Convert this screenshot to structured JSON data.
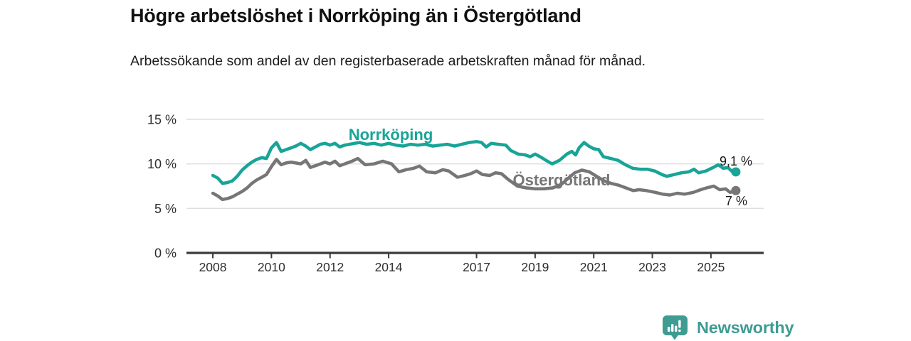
{
  "header": {
    "title": "Högre arbetslöshet i Norrköping än i Östergötland",
    "subtitle": "Arbetssökande som andel av den registerbaserade arbetskraften månad för månad."
  },
  "footer": {
    "brand": "Newsworthy",
    "brand_color": "#3F9C92",
    "brand_icon": "bar-chart-pin-icon"
  },
  "colors": {
    "norrkoping_line": "#18A497",
    "ostergotland_line": "#767676",
    "axis": "#3a3a3a",
    "grid": "#dedede",
    "tick_text": "#2e2e2e",
    "value_label_text": "#1a1a1a"
  },
  "chart_data": {
    "type": "line",
    "title": "Högre arbetslöshet i Norrköping än i Östergötland",
    "subtitle": "Arbetssökande som andel av den registerbaserade arbetskraften månad för månad.",
    "unit": "%",
    "xlim": [
      2007.1,
      2026.8
    ],
    "ylim": [
      0,
      15
    ],
    "grid": "horizontal gridlines at 5, 10, 15",
    "legend_position": "inline labels on lines",
    "y_ticks": [
      {
        "value": 0,
        "label": "0 %"
      },
      {
        "value": 5,
        "label": "5 %"
      },
      {
        "value": 10,
        "label": "10 %"
      },
      {
        "value": 15,
        "label": "15 %"
      }
    ],
    "x_ticks": [
      {
        "value": 2008,
        "label": "2008"
      },
      {
        "value": 2010,
        "label": "2010"
      },
      {
        "value": 2012,
        "label": "2012"
      },
      {
        "value": 2014,
        "label": "2014"
      },
      {
        "value": 2017,
        "label": "2017"
      },
      {
        "value": 2019,
        "label": "2019"
      },
      {
        "value": 2021,
        "label": "2021"
      },
      {
        "value": 2023,
        "label": "2023"
      },
      {
        "value": 2025,
        "label": "2025"
      }
    ],
    "series": [
      {
        "name": "Norrköping",
        "color": "#18A497",
        "end_label": "9,1 %",
        "end_value": 9.1,
        "points": [
          [
            2008.0,
            8.7
          ],
          [
            2008.17,
            8.4
          ],
          [
            2008.33,
            7.8
          ],
          [
            2008.5,
            7.9
          ],
          [
            2008.67,
            8.1
          ],
          [
            2008.83,
            8.6
          ],
          [
            2009.0,
            9.3
          ],
          [
            2009.17,
            9.8
          ],
          [
            2009.33,
            10.2
          ],
          [
            2009.5,
            10.5
          ],
          [
            2009.67,
            10.7
          ],
          [
            2009.83,
            10.6
          ],
          [
            2010.0,
            11.8
          ],
          [
            2010.17,
            12.4
          ],
          [
            2010.33,
            11.4
          ],
          [
            2010.5,
            11.6
          ],
          [
            2010.67,
            11.8
          ],
          [
            2010.83,
            12.0
          ],
          [
            2011.0,
            12.3
          ],
          [
            2011.17,
            12.0
          ],
          [
            2011.33,
            11.6
          ],
          [
            2011.5,
            11.9
          ],
          [
            2011.67,
            12.2
          ],
          [
            2011.83,
            12.3
          ],
          [
            2012.0,
            12.1
          ],
          [
            2012.17,
            12.3
          ],
          [
            2012.33,
            11.9
          ],
          [
            2012.5,
            12.1
          ],
          [
            2012.67,
            12.2
          ],
          [
            2012.83,
            12.3
          ],
          [
            2013.0,
            12.4
          ],
          [
            2013.25,
            12.2
          ],
          [
            2013.5,
            12.3
          ],
          [
            2013.75,
            12.1
          ],
          [
            2014.0,
            12.3
          ],
          [
            2014.25,
            12.1
          ],
          [
            2014.5,
            12.0
          ],
          [
            2014.75,
            12.2
          ],
          [
            2015.0,
            12.1
          ],
          [
            2015.25,
            12.2
          ],
          [
            2015.5,
            12.0
          ],
          [
            2015.75,
            12.1
          ],
          [
            2016.0,
            12.2
          ],
          [
            2016.25,
            12.0
          ],
          [
            2016.5,
            12.2
          ],
          [
            2016.75,
            12.4
          ],
          [
            2017.0,
            12.5
          ],
          [
            2017.17,
            12.4
          ],
          [
            2017.33,
            11.9
          ],
          [
            2017.5,
            12.3
          ],
          [
            2017.75,
            12.2
          ],
          [
            2018.0,
            12.1
          ],
          [
            2018.17,
            11.5
          ],
          [
            2018.42,
            11.1
          ],
          [
            2018.67,
            11.0
          ],
          [
            2018.83,
            10.8
          ],
          [
            2019.0,
            11.1
          ],
          [
            2019.17,
            10.8
          ],
          [
            2019.42,
            10.3
          ],
          [
            2019.58,
            10.0
          ],
          [
            2019.83,
            10.4
          ],
          [
            2020.08,
            11.1
          ],
          [
            2020.25,
            11.4
          ],
          [
            2020.38,
            11.0
          ],
          [
            2020.5,
            11.8
          ],
          [
            2020.67,
            12.4
          ],
          [
            2020.83,
            12.0
          ],
          [
            2021.0,
            11.7
          ],
          [
            2021.17,
            11.6
          ],
          [
            2021.33,
            10.8
          ],
          [
            2021.58,
            10.6
          ],
          [
            2021.83,
            10.4
          ],
          [
            2022.08,
            9.9
          ],
          [
            2022.33,
            9.5
          ],
          [
            2022.58,
            9.4
          ],
          [
            2022.83,
            9.4
          ],
          [
            2023.08,
            9.2
          ],
          [
            2023.33,
            8.8
          ],
          [
            2023.5,
            8.6
          ],
          [
            2023.75,
            8.8
          ],
          [
            2024.0,
            9.0
          ],
          [
            2024.25,
            9.1
          ],
          [
            2024.42,
            9.4
          ],
          [
            2024.58,
            9.0
          ],
          [
            2024.83,
            9.2
          ],
          [
            2025.08,
            9.6
          ],
          [
            2025.25,
            9.9
          ],
          [
            2025.42,
            9.5
          ],
          [
            2025.58,
            9.6
          ],
          [
            2025.7,
            9.2
          ],
          [
            2025.85,
            9.1
          ]
        ]
      },
      {
        "name": "Östergötland",
        "color": "#767676",
        "end_label": "7 %",
        "end_value": 7.0,
        "points": [
          [
            2008.0,
            6.7
          ],
          [
            2008.17,
            6.4
          ],
          [
            2008.33,
            6.0
          ],
          [
            2008.5,
            6.1
          ],
          [
            2008.67,
            6.3
          ],
          [
            2008.83,
            6.6
          ],
          [
            2009.0,
            6.9
          ],
          [
            2009.17,
            7.3
          ],
          [
            2009.33,
            7.8
          ],
          [
            2009.5,
            8.2
          ],
          [
            2009.67,
            8.5
          ],
          [
            2009.83,
            8.8
          ],
          [
            2010.0,
            9.7
          ],
          [
            2010.17,
            10.5
          ],
          [
            2010.33,
            9.9
          ],
          [
            2010.5,
            10.1
          ],
          [
            2010.67,
            10.2
          ],
          [
            2010.83,
            10.1
          ],
          [
            2011.0,
            10.0
          ],
          [
            2011.17,
            10.4
          ],
          [
            2011.33,
            9.6
          ],
          [
            2011.5,
            9.8
          ],
          [
            2011.67,
            10.0
          ],
          [
            2011.83,
            10.2
          ],
          [
            2012.0,
            10.0
          ],
          [
            2012.17,
            10.3
          ],
          [
            2012.33,
            9.8
          ],
          [
            2012.5,
            10.0
          ],
          [
            2012.75,
            10.3
          ],
          [
            2012.95,
            10.6
          ],
          [
            2013.2,
            9.9
          ],
          [
            2013.5,
            10.0
          ],
          [
            2013.8,
            10.3
          ],
          [
            2014.1,
            10.0
          ],
          [
            2014.35,
            9.1
          ],
          [
            2014.6,
            9.35
          ],
          [
            2014.85,
            9.5
          ],
          [
            2015.05,
            9.75
          ],
          [
            2015.3,
            9.1
          ],
          [
            2015.6,
            9.0
          ],
          [
            2015.85,
            9.35
          ],
          [
            2016.05,
            9.2
          ],
          [
            2016.35,
            8.5
          ],
          [
            2016.6,
            8.7
          ],
          [
            2016.8,
            8.9
          ],
          [
            2017.0,
            9.2
          ],
          [
            2017.2,
            8.8
          ],
          [
            2017.45,
            8.7
          ],
          [
            2017.65,
            9.0
          ],
          [
            2017.85,
            8.9
          ],
          [
            2018.1,
            8.2
          ],
          [
            2018.4,
            7.5
          ],
          [
            2018.7,
            7.3
          ],
          [
            2019.0,
            7.2
          ],
          [
            2019.3,
            7.2
          ],
          [
            2019.6,
            7.3
          ],
          [
            2019.9,
            7.7
          ],
          [
            2020.1,
            8.3
          ],
          [
            2020.35,
            9.0
          ],
          [
            2020.6,
            9.3
          ],
          [
            2020.85,
            9.1
          ],
          [
            2021.1,
            8.6
          ],
          [
            2021.35,
            8.1
          ],
          [
            2021.6,
            7.8
          ],
          [
            2021.85,
            7.6
          ],
          [
            2022.1,
            7.3
          ],
          [
            2022.35,
            7.0
          ],
          [
            2022.55,
            7.1
          ],
          [
            2022.8,
            7.0
          ],
          [
            2023.1,
            6.8
          ],
          [
            2023.35,
            6.6
          ],
          [
            2023.6,
            6.5
          ],
          [
            2023.85,
            6.7
          ],
          [
            2024.1,
            6.6
          ],
          [
            2024.4,
            6.8
          ],
          [
            2024.65,
            7.1
          ],
          [
            2024.9,
            7.35
          ],
          [
            2025.1,
            7.5
          ],
          [
            2025.3,
            7.1
          ],
          [
            2025.5,
            7.2
          ],
          [
            2025.65,
            6.8
          ],
          [
            2025.85,
            7.0
          ]
        ]
      }
    ]
  }
}
